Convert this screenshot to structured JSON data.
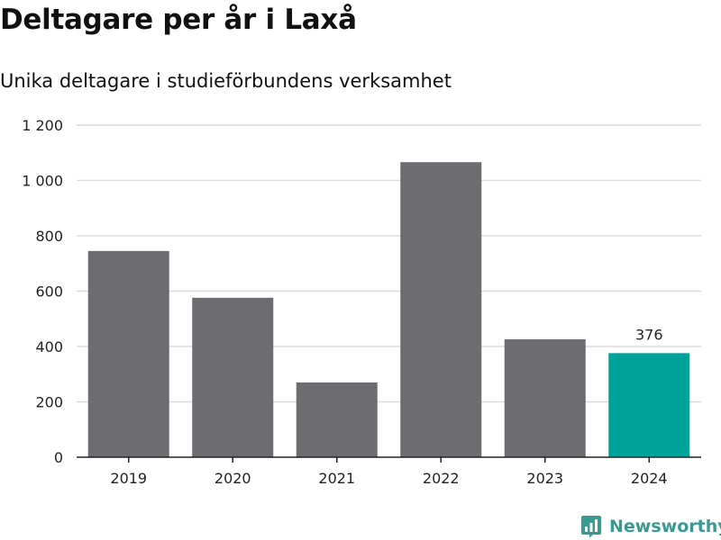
{
  "title": "Deltagare per år i Laxå",
  "subtitle": "Unika deltagare i studieförbundens verksamhet",
  "brand": "Newsworthy",
  "colors": {
    "bar": "#6d6c71",
    "highlight": "#00a39a",
    "grid": "#dcdcdc",
    "axis": "#222222",
    "text": "#222222",
    "brand": "#3a9a92"
  },
  "chart_data": {
    "type": "bar",
    "title": "Deltagare per år i Laxå",
    "subtitle": "Unika deltagare i studieförbundens verksamhet",
    "xlabel": "",
    "ylabel": "",
    "categories": [
      "2019",
      "2020",
      "2021",
      "2022",
      "2023",
      "2024"
    ],
    "values": [
      745,
      576,
      270,
      1066,
      426,
      376
    ],
    "highlight": {
      "category": "2024",
      "label": "376"
    },
    "ylim": [
      0,
      1200
    ],
    "yticks": [
      0,
      200,
      400,
      600,
      800,
      1000,
      1200
    ],
    "ytick_labels": [
      "0",
      "200",
      "400",
      "600",
      "800",
      "1 000",
      "1 200"
    ],
    "grid": true,
    "legend": "none"
  }
}
